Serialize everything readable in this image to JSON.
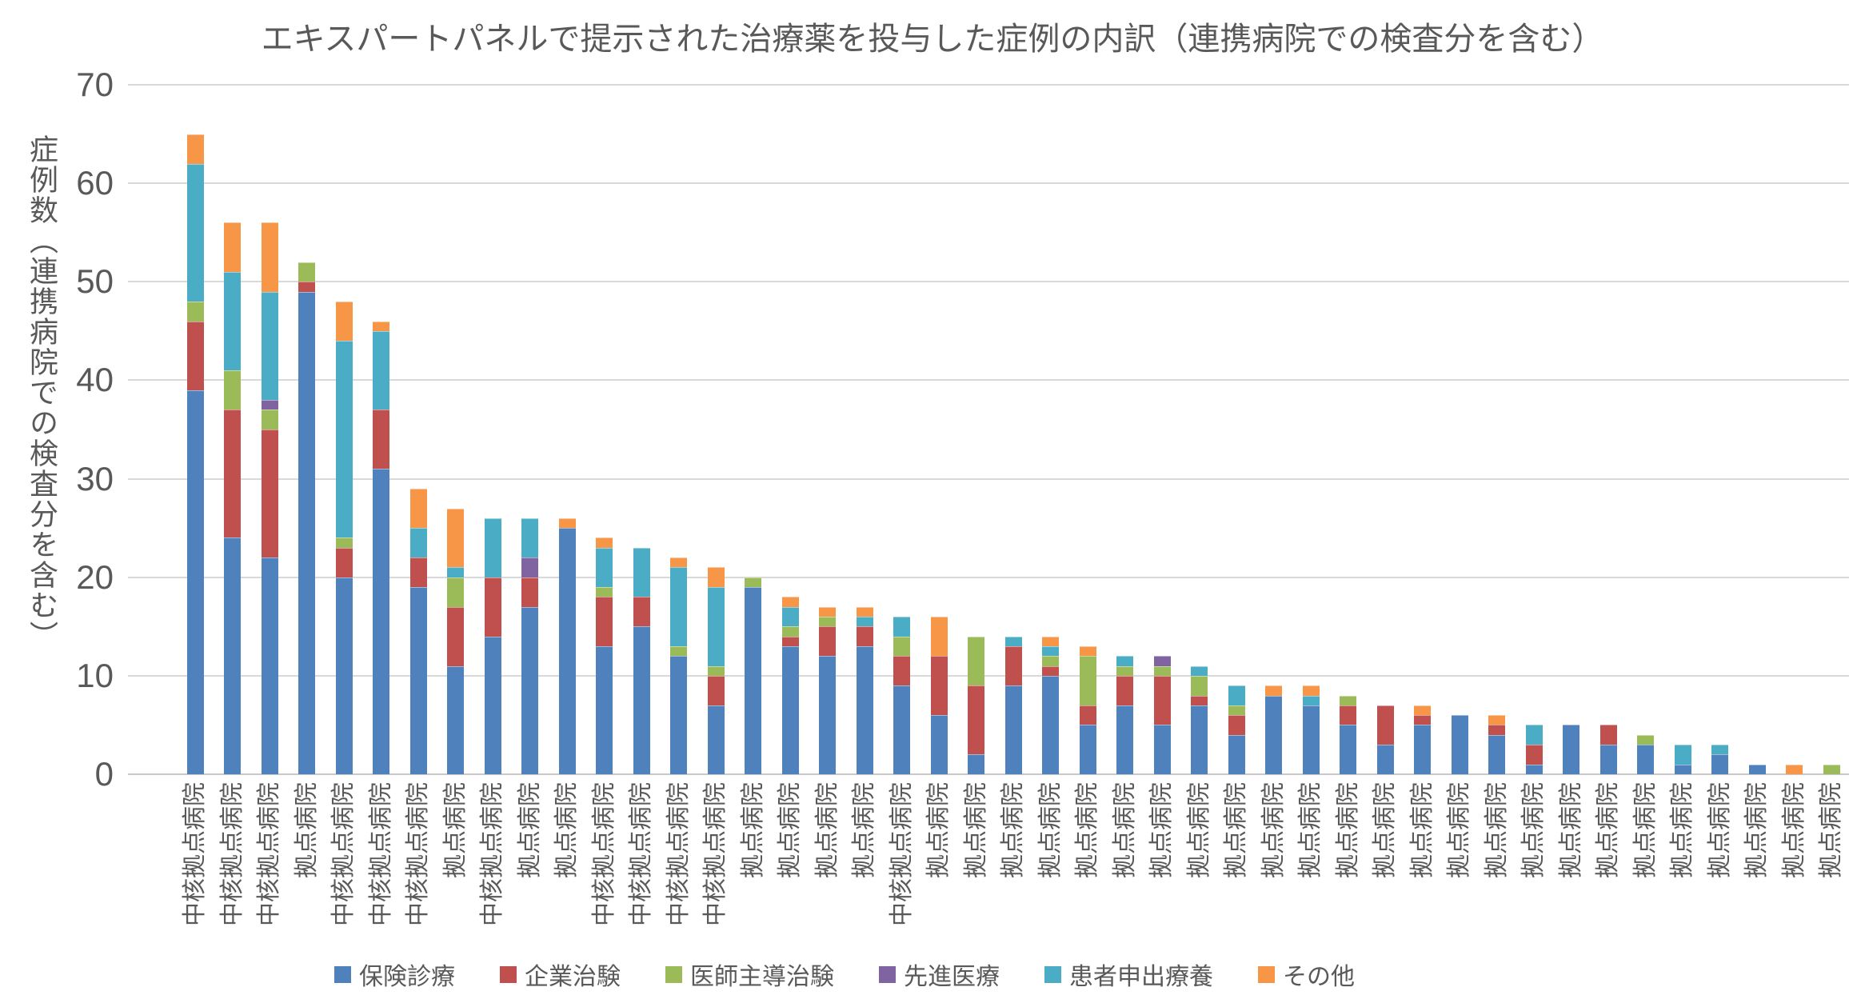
{
  "title": "エキスパートパネルで提示された治療薬を投与した症例の内訳（連携病院での検査分を含む）",
  "y_axis_title": "症例数（連携病院での検査分を含む）",
  "chart_data": {
    "type": "bar",
    "stacked": true,
    "title": "エキスパートパネルで提示された治療薬を投与した症例の内訳（連携病院での検査分を含む）",
    "ylabel": "症例数（連携病院での検査分を含む）",
    "xlabel": "",
    "ylim": [
      0,
      70
    ],
    "ytick_step": 10,
    "yticks": [
      0,
      10,
      20,
      30,
      40,
      50,
      60,
      70
    ],
    "grid": true,
    "legend_position": "bottom",
    "categories": [
      "中核拠点病院",
      "中核拠点病院",
      "中核拠点病院",
      "拠点病院",
      "中核拠点病院",
      "中核拠点病院",
      "中核拠点病院",
      "拠点病院",
      "中核拠点病院",
      "拠点病院",
      "拠点病院",
      "中核拠点病院",
      "中核拠点病院",
      "中核拠点病院",
      "中核拠点病院",
      "拠点病院",
      "拠点病院",
      "拠点病院",
      "拠点病院",
      "中核拠点病院",
      "拠点病院",
      "拠点病院",
      "拠点病院",
      "拠点病院",
      "拠点病院",
      "拠点病院",
      "拠点病院",
      "拠点病院",
      "拠点病院",
      "拠点病院",
      "拠点病院",
      "拠点病院",
      "拠点病院",
      "拠点病院",
      "拠点病院",
      "拠点病院",
      "拠点病院",
      "拠点病院",
      "拠点病院",
      "拠点病院",
      "拠点病院",
      "拠点病院",
      "拠点病院",
      "拠点病院",
      "拠点病院"
    ],
    "series": [
      {
        "name": "保険診療",
        "color": "#4F81BD",
        "values": [
          39,
          24,
          22,
          49,
          20,
          31,
          19,
          11,
          14,
          17,
          25,
          13,
          15,
          12,
          7,
          19,
          13,
          12,
          13,
          9,
          6,
          2,
          9,
          10,
          5,
          7,
          5,
          7,
          4,
          8,
          7,
          5,
          3,
          5,
          6,
          4,
          1,
          5,
          3,
          3,
          1,
          2,
          1,
          0,
          0
        ]
      },
      {
        "name": "企業治験",
        "color": "#C0504D",
        "values": [
          7,
          13,
          13,
          1,
          3,
          6,
          3,
          6,
          6,
          3,
          0,
          5,
          3,
          0,
          3,
          0,
          1,
          3,
          2,
          3,
          6,
          7,
          4,
          1,
          2,
          3,
          5,
          1,
          2,
          0,
          0,
          2,
          4,
          1,
          0,
          1,
          2,
          0,
          2,
          0,
          0,
          0,
          0,
          0,
          0
        ]
      },
      {
        "name": "医師主導治験",
        "color": "#9BBB59",
        "values": [
          2,
          4,
          2,
          2,
          1,
          0,
          0,
          3,
          0,
          0,
          0,
          1,
          0,
          1,
          1,
          1,
          1,
          1,
          0,
          2,
          0,
          5,
          0,
          1,
          5,
          1,
          1,
          2,
          1,
          0,
          0,
          1,
          0,
          0,
          0,
          0,
          0,
          0,
          0,
          1,
          0,
          0,
          0,
          0,
          1
        ]
      },
      {
        "name": "先進医療",
        "color": "#8064A2",
        "values": [
          0,
          0,
          1,
          0,
          0,
          0,
          0,
          0,
          0,
          2,
          0,
          0,
          0,
          0,
          0,
          0,
          0,
          0,
          0,
          0,
          0,
          0,
          0,
          0,
          0,
          0,
          1,
          0,
          0,
          0,
          0,
          0,
          0,
          0,
          0,
          0,
          0,
          0,
          0,
          0,
          0,
          0,
          0,
          0,
          0
        ]
      },
      {
        "name": "患者申出療養",
        "color": "#4BACC6",
        "values": [
          14,
          10,
          11,
          0,
          20,
          8,
          3,
          1,
          6,
          4,
          0,
          4,
          5,
          8,
          8,
          0,
          2,
          0,
          1,
          2,
          0,
          0,
          1,
          1,
          0,
          1,
          0,
          1,
          2,
          0,
          1,
          0,
          0,
          0,
          0,
          0,
          2,
          0,
          0,
          0,
          2,
          1,
          0,
          0,
          0
        ]
      },
      {
        "name": "その他",
        "color": "#F79646",
        "values": [
          3,
          5,
          7,
          0,
          4,
          1,
          4,
          6,
          0,
          0,
          1,
          1,
          0,
          1,
          2,
          0,
          1,
          1,
          1,
          0,
          4,
          0,
          0,
          1,
          1,
          0,
          0,
          0,
          0,
          1,
          1,
          0,
          0,
          1,
          0,
          1,
          0,
          0,
          0,
          0,
          0,
          0,
          0,
          1,
          0
        ]
      }
    ]
  }
}
